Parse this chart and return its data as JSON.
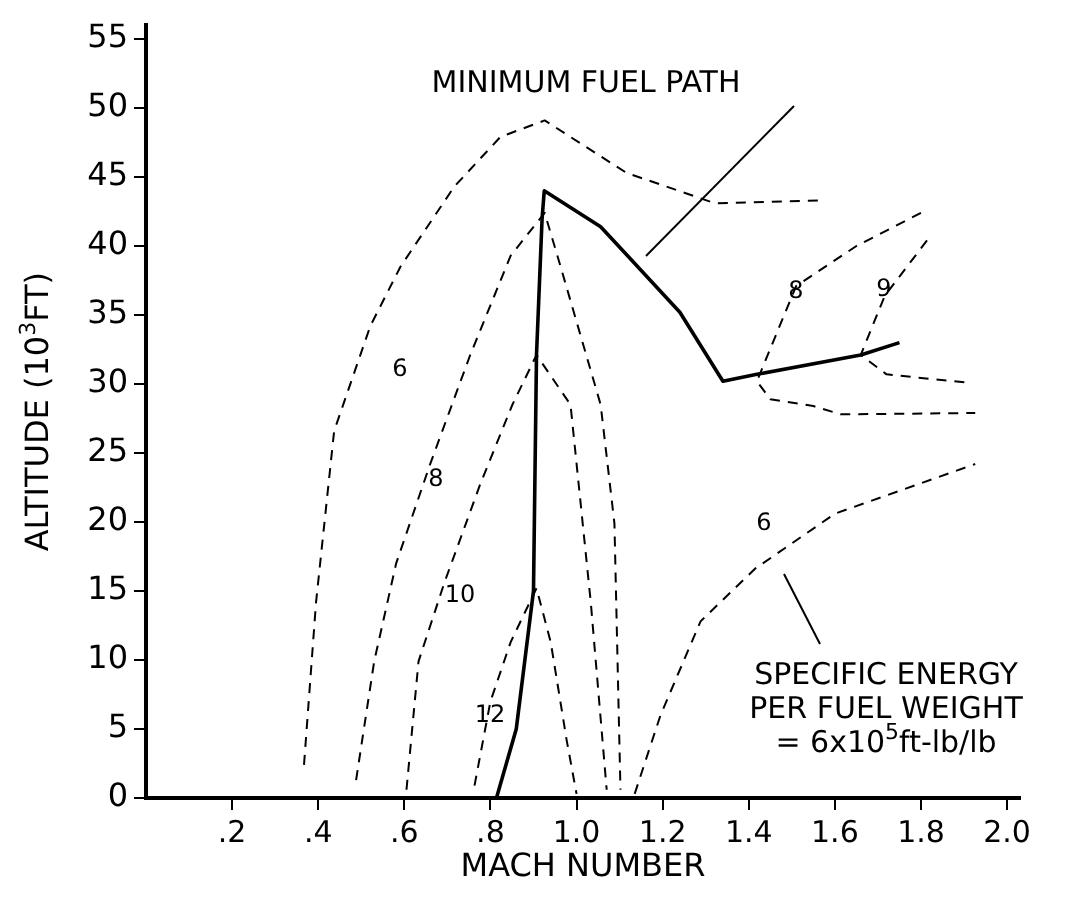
{
  "chart_data": {
    "type": "line",
    "xlabel": "MACH NUMBER",
    "ylabel": "ALTITUDE (10$^{3}$FT)",
    "xlim": [
      0,
      2.03
    ],
    "ylim": [
      0,
      56
    ],
    "xticks": [
      {
        "value": 0.2,
        "label": ".2"
      },
      {
        "value": 0.4,
        "label": ".4"
      },
      {
        "value": 0.6,
        "label": ".6"
      },
      {
        "value": 0.8,
        "label": ".8"
      },
      {
        "value": 1,
        "label": "1.0"
      },
      {
        "value": 1.2,
        "label": "1.2"
      },
      {
        "value": 1.4,
        "label": "1.4"
      },
      {
        "value": 1.6,
        "label": "1.6"
      },
      {
        "value": 1.8,
        "label": "1.8"
      },
      {
        "value": 2,
        "label": "2.0"
      }
    ],
    "yticks": [
      0,
      5,
      10,
      15,
      20,
      25,
      30,
      35,
      40,
      45,
      50,
      55
    ],
    "series": [
      {
        "color": "#000000",
        "line_style": "solid",
        "x": [
          0.814,
          0.86,
          0.88,
          0.9,
          0.907,
          0.92,
          0.925,
          1.056,
          1.24,
          1.34,
          1.419,
          1.66,
          1.75
        ],
        "values": [
          0,
          5,
          10,
          15,
          32.1,
          42,
          44,
          41.4,
          35.2,
          30.2,
          30.7,
          32.1,
          33
        ]
      },
      {
        "color": "#000000",
        "line_style": "dashed",
        "x": [
          0.367,
          0.395,
          0.437,
          0.521,
          0.591,
          0.716,
          0.823,
          0.926,
          1.116,
          1.321,
          1.567
        ],
        "values": [
          2.4,
          14.2,
          26.6,
          34.2,
          38.5,
          44.3,
          47.9,
          49.1,
          45.3,
          43.1,
          43.3
        ]
      },
      {
        "color": "#000000",
        "line_style": "dashed",
        "x": [
          0.488,
          0.53,
          0.581,
          0.66,
          0.753,
          0.847,
          0.926,
          0.963,
          1.056,
          1.088,
          1.102
        ],
        "values": [
          1.3,
          9.9,
          17,
          24.2,
          32.1,
          39.3,
          42.4,
          38.5,
          28.5,
          19.9,
          0.6
        ]
      },
      {
        "color": "#000000",
        "line_style": "dashed",
        "x": [
          0.605,
          0.633,
          0.693,
          0.777,
          0.851,
          0.907,
          0.986,
          1.033,
          1.07
        ],
        "values": [
          0.6,
          9.9,
          15.6,
          22.8,
          28.5,
          32.1,
          28.5,
          14.2,
          0.6
        ]
      },
      {
        "color": "#000000",
        "line_style": "dashed",
        "x": [
          0.763,
          0.8,
          0.847,
          0.907,
          0.94,
          0.977,
          1
        ],
        "values": [
          0.9,
          7,
          11.3,
          15.2,
          11.3,
          4.2,
          0.3
        ]
      },
      {
        "color": "#000000",
        "line_style": "dashed",
        "x": [
          1.8,
          1.65,
          1.51,
          1.419,
          1.45,
          1.55,
          1.614,
          1.926
        ],
        "values": [
          42.4,
          40,
          37.1,
          30.2,
          28.9,
          28.4,
          27.8,
          27.9
        ]
      },
      {
        "color": "#000000",
        "line_style": "dashed",
        "x": [
          1.814,
          1.716,
          1.66,
          1.72,
          1.907
        ],
        "values": [
          40.4,
          36.4,
          32.1,
          30.7,
          30.1
        ]
      },
      {
        "color": "#000000",
        "line_style": "dashed",
        "x": [
          1.135,
          1.195,
          1.288,
          1.414,
          1.6,
          1.926
        ],
        "values": [
          0.3,
          6,
          12.8,
          16.6,
          20.6,
          24.2
        ]
      }
    ],
    "annotations": [
      "MINIMUM FUEL PATH",
      "SPECIFIC ENERGY\nPER FUEL WEIGHT\n= 6x10$^{5}$ft-lb/lb",
      "6",
      "8",
      "10",
      "12",
      "8",
      "9",
      "6"
    ]
  }
}
